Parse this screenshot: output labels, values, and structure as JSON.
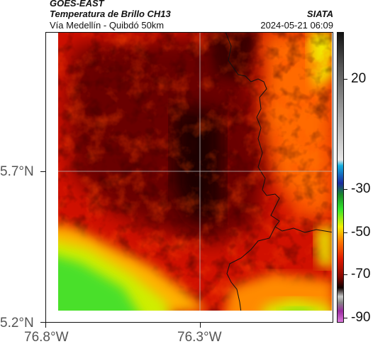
{
  "header": {
    "satellite": "GOES-EAST",
    "product": "Temperatura de Brillo CH13",
    "source": "SIATA",
    "region": "Vía Medellín - Quibdó 50km",
    "timestamp": "2024-05-21 06:09"
  },
  "map": {
    "lat_ticks": [
      "5.7°N",
      "5.2°N"
    ],
    "lon_ticks": [
      "76.8°W",
      "76.3°W"
    ],
    "gridlines": "light grey, at 5.7°N and 76.3°W",
    "features": [
      "brightness temperature field",
      "country boundary line"
    ]
  },
  "colorbar": {
    "ticks": [
      "20",
      "-30",
      "-50",
      "-70",
      "-90"
    ],
    "palette": {
      "very_cold": "#9a2aa0",
      "cold_grey": "#9a9a9a",
      "black": "#0f0000",
      "dark_red": "#4a0500",
      "red": "#b30a00",
      "bright_red": "#e21a00",
      "orange": "#ff7a00",
      "yellow": "#f2ee00",
      "green": "#32e62a",
      "blue": "#1a2aa0",
      "cyan": "#14b0e0",
      "light_grey": "#d8d8d8",
      "dark_grey": "#333333"
    }
  }
}
